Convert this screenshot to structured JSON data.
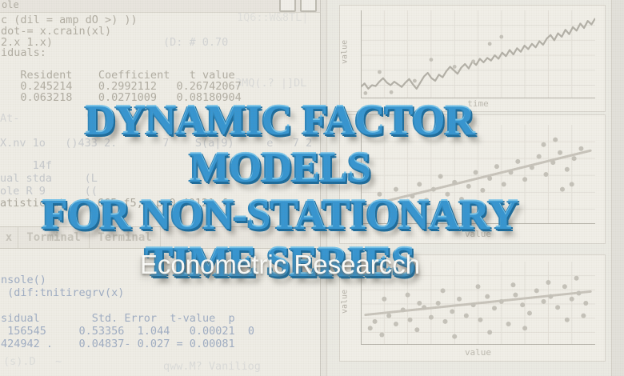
{
  "colors": {
    "page_bg": "#e7e5de",
    "window_bg": "#f0eee7",
    "panel_bg": "#f2f0e9",
    "grid": "#e4e1d9",
    "axis": "#b9b6ad",
    "line": "#b4b1a8",
    "dot": "#c6c3ba",
    "trend": "#c9c5bc",
    "title_blue": "#3796d1",
    "title_outline": "#1d6c9c",
    "subtitle_white": "#fcfcf9"
  },
  "title": {
    "lines": [
      "DYNAMIC FACTOR MODELS",
      "FOR NON-STATIONARY",
      "TIME SERIES"
    ]
  },
  "subtitle": {
    "text": "Econometric Researcch"
  },
  "console_window": {
    "titlebar_text": "ole",
    "button_icons": [
      "window-button",
      "window-button"
    ],
    "code_lines": [
      "c (dil = amp dO >) ))",
      "dot-= x.crain(xl)",
      "2.x 1.x)",
      "iduals:",
      "",
      "   Resident    Coefficient   t value",
      "   0.245214    0.2992112   0.26742067",
      "   0.063218    0.0271009   0.08180904"
    ]
  },
  "terminal": {
    "tabs": [
      "x",
      "Torminal",
      "Terminal"
    ],
    "code_lines": [
      "nsole()",
      " (dif:tnitiregrv(x)",
      "",
      "sidual        Std. Error  t-value  p",
      " 156545     0.53356  1.044   0.00021  0",
      "424942 .    0.04837- 0.027 = 0.00081"
    ]
  },
  "ghosts": [
    {
      "text": "1Q6::W&8TL|"
    },
    {
      "text": "(D: # 0.70"
    },
    {
      "text": "3MQ(.? |]DL"
    },
    {
      "text": "At-          'n WL"
    },
    {
      "text": "X.nv 1o   ()433 2.       7    S(a|9)     e   7 2"
    },
    {
      "text": "     14f"
    },
    {
      "text": "ual stda     (L"
    },
    {
      "text": "ole R 9      (("
    },
    {
      "text": "atistic at   1.665 f5,  p=0.4012] f"
    },
    {
      "text": "(s).D   ~"
    },
    {
      "text": "qww.M? Vaniliog"
    }
  ],
  "chart_data": [
    {
      "id": "trend-line",
      "type": "line",
      "title": "",
      "xlabel": "time",
      "ylabel": "value",
      "xlim": [
        0,
        100
      ],
      "ylim": [
        0,
        100
      ],
      "grid": true,
      "legend": "none",
      "series": [
        {
          "name": "value",
          "values": [
            13,
            17,
            11,
            15,
            14,
            19,
            23,
            18,
            15,
            19,
            16,
            13,
            18,
            22,
            16,
            11,
            18,
            25,
            29,
            23,
            20,
            27,
            24,
            31,
            36,
            32,
            28,
            35,
            39,
            34,
            42,
            38,
            45,
            41,
            46,
            43,
            49,
            45,
            52,
            48,
            55,
            50,
            57,
            53,
            60,
            56,
            62,
            58,
            65,
            61,
            68,
            72,
            66,
            74,
            70,
            78,
            73,
            81,
            77,
            85,
            80,
            88,
            84,
            91
          ]
        }
      ],
      "dots": [
        [
          2,
          6
        ],
        [
          8,
          30
        ],
        [
          13,
          7
        ],
        [
          23,
          20
        ],
        [
          30,
          44
        ],
        [
          40,
          36
        ],
        [
          48,
          42
        ],
        [
          55,
          62
        ],
        [
          60,
          70
        ]
      ]
    },
    {
      "id": "scatter-mid",
      "type": "scatter",
      "title": "",
      "xlabel": "value",
      "ylabel": "",
      "xlim": [
        0,
        100
      ],
      "ylim": [
        0,
        100
      ],
      "grid": true,
      "legend": "none",
      "points": [
        [
          5,
          18
        ],
        [
          8,
          30
        ],
        [
          12,
          22
        ],
        [
          15,
          35
        ],
        [
          18,
          15
        ],
        [
          22,
          28
        ],
        [
          25,
          40
        ],
        [
          28,
          24
        ],
        [
          31,
          35
        ],
        [
          34,
          48
        ],
        [
          37,
          30
        ],
        [
          40,
          42
        ],
        [
          43,
          25
        ],
        [
          46,
          38
        ],
        [
          49,
          52
        ],
        [
          52,
          34
        ],
        [
          55,
          46
        ],
        [
          58,
          58
        ],
        [
          61,
          40
        ],
        [
          64,
          52
        ],
        [
          67,
          63
        ],
        [
          70,
          45
        ],
        [
          73,
          57
        ],
        [
          76,
          68
        ],
        [
          79,
          50
        ],
        [
          82,
          62
        ],
        [
          85,
          72
        ],
        [
          88,
          55
        ],
        [
          91,
          66
        ],
        [
          94,
          76
        ],
        [
          90,
          40
        ],
        [
          86,
          35
        ],
        [
          60,
          20
        ],
        [
          35,
          15
        ],
        [
          78,
          80
        ],
        [
          83,
          85
        ]
      ],
      "trend": [
        [
          2,
          18
        ],
        [
          98,
          74
        ]
      ]
    },
    {
      "id": "scatter-bottom",
      "type": "scatter",
      "title": "",
      "xlabel": "value",
      "ylabel": "value",
      "xlim": [
        0,
        100
      ],
      "ylim": [
        0,
        100
      ],
      "grid": true,
      "legend": "none",
      "points": [
        [
          4,
          20
        ],
        [
          6,
          28
        ],
        [
          9,
          12
        ],
        [
          12,
          35
        ],
        [
          15,
          25
        ],
        [
          18,
          42
        ],
        [
          21,
          30
        ],
        [
          24,
          18
        ],
        [
          27,
          45
        ],
        [
          30,
          33
        ],
        [
          33,
          50
        ],
        [
          36,
          28
        ],
        [
          39,
          40
        ],
        [
          42,
          55
        ],
        [
          45,
          35
        ],
        [
          48,
          48
        ],
        [
          51,
          30
        ],
        [
          54,
          58
        ],
        [
          57,
          44
        ],
        [
          60,
          52
        ],
        [
          63,
          25
        ],
        [
          66,
          60
        ],
        [
          69,
          48
        ],
        [
          72,
          38
        ],
        [
          75,
          65
        ],
        [
          78,
          52
        ],
        [
          81,
          58
        ],
        [
          84,
          45
        ],
        [
          87,
          70
        ],
        [
          90,
          55
        ],
        [
          93,
          62
        ],
        [
          96,
          50
        ],
        [
          10,
          55
        ],
        [
          20,
          60
        ],
        [
          35,
          65
        ],
        [
          50,
          70
        ],
        [
          65,
          72
        ],
        [
          80,
          75
        ],
        [
          88,
          30
        ],
        [
          70,
          20
        ],
        [
          55,
          15
        ],
        [
          40,
          10
        ],
        [
          25,
          50
        ],
        [
          92,
          80
        ],
        [
          95,
          35
        ]
      ],
      "trend": [
        [
          2,
          36
        ],
        [
          98,
          64
        ]
      ]
    }
  ]
}
